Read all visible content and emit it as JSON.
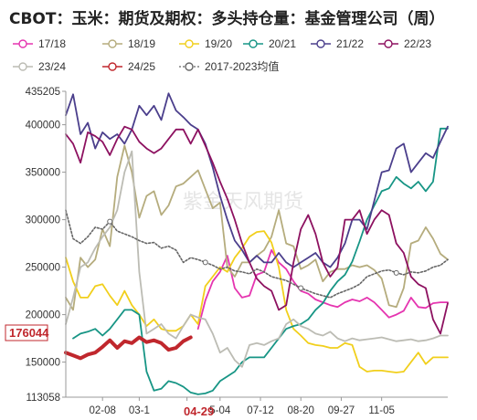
{
  "chart_data": {
    "type": "line",
    "title": "CBOT：玉米：期货及期权：多头持仓量：基金管理公司（周）",
    "watermark": "紫金天风期货",
    "xlabel": "",
    "ylabel": "",
    "ylim": [
      113058,
      435205
    ],
    "yticks": [
      113058,
      150000,
      200000,
      250000,
      300000,
      350000,
      400000,
      435205
    ],
    "yticklabels": [
      "113058",
      "150000",
      "200000",
      "250000",
      "300000",
      "350000",
      "400000",
      "435205"
    ],
    "xlim": [
      0,
      52
    ],
    "xticks": [
      {
        "week": 5,
        "label": "02-08"
      },
      {
        "week": 10,
        "label": "03-1"
      },
      {
        "week": 16.5,
        "label": "04-29"
      },
      {
        "week": 21,
        "label": "5-04"
      },
      {
        "week": 26.5,
        "label": "07-12"
      },
      {
        "week": 32,
        "label": "08-20"
      },
      {
        "week": 37.5,
        "label": "09-27"
      },
      {
        "week": 43,
        "label": "11-05"
      }
    ],
    "current_value_label": "176044",
    "current_value": 176044,
    "last_label": "04-29",
    "series": [
      {
        "name": "17/18",
        "color": "#e535b0",
        "marker": "none",
        "values": [
          null,
          null,
          null,
          null,
          null,
          null,
          null,
          null,
          null,
          null,
          null,
          null,
          null,
          null,
          null,
          null,
          null,
          null,
          185000,
          215000,
          235000,
          245000,
          262000,
          228000,
          218000,
          220000,
          242000,
          245000,
          268000,
          255000,
          248000,
          235000,
          225000,
          222000,
          216000,
          213000,
          210000,
          208000,
          213000,
          216000,
          214000,
          218000,
          213000,
          205000,
          197000,
          200000,
          204000,
          218000,
          208000,
          207000,
          212000,
          213000,
          213000
        ]
      },
      {
        "name": "18/19",
        "color": "#b5ac7d",
        "marker": "none",
        "values": [
          218000,
          205000,
          260000,
          250000,
          258000,
          290000,
          272000,
          345000,
          378000,
          350000,
          302000,
          325000,
          330000,
          305000,
          315000,
          335000,
          338000,
          345000,
          352000,
          332000,
          312000,
          318000,
          250000,
          240000,
          255000,
          255000,
          262000,
          268000,
          282000,
          310000,
          275000,
          272000,
          248000,
          252000,
          258000,
          235000,
          245000,
          248000,
          248000,
          252000,
          250000,
          252000,
          247000,
          238000,
          210000,
          208000,
          228000,
          275000,
          278000,
          292000,
          280000,
          264000,
          258000
        ]
      },
      {
        "name": "19/20",
        "color": "#f1cf1c",
        "marker": "none",
        "values": [
          260000,
          235000,
          218000,
          218000,
          230000,
          232000,
          220000,
          210000,
          225000,
          210000,
          200000,
          188000,
          195000,
          185000,
          183000,
          183000,
          188000,
          200000,
          190000,
          230000,
          240000,
          250000,
          245000,
          260000,
          270000,
          282000,
          287000,
          288000,
          276000,
          250000,
          205000,
          185000,
          178000,
          170000,
          168000,
          167000,
          165000,
          165000,
          170000,
          168000,
          145000,
          140000,
          141000,
          141000,
          140000,
          139000,
          140000,
          150000,
          160000,
          148000,
          155000,
          155000,
          155000
        ]
      },
      {
        "name": "20/21",
        "color": "#179585",
        "marker": "none",
        "values": [
          null,
          175000,
          180000,
          182000,
          185000,
          178000,
          185000,
          195000,
          205000,
          205000,
          200000,
          140000,
          120000,
          122000,
          130000,
          128000,
          124000,
          118000,
          116000,
          117000,
          120000,
          130000,
          135000,
          140000,
          150000,
          155000,
          155000,
          155000,
          165000,
          175000,
          185000,
          188000,
          190000,
          195000,
          205000,
          212000,
          225000,
          235000,
          242000,
          256000,
          277000,
          300000,
          315000,
          330000,
          333000,
          345000,
          338000,
          333000,
          340000,
          330000,
          340000,
          396000,
          396000
        ]
      },
      {
        "name": "21/22",
        "color": "#4b3f8c",
        "marker": "none",
        "values": [
          410000,
          432000,
          390000,
          402000,
          375000,
          392000,
          385000,
          390000,
          380000,
          395000,
          420000,
          410000,
          420000,
          405000,
          433000,
          415000,
          408000,
          400000,
          395000,
          380000,
          355000,
          325000,
          300000,
          278000,
          268000,
          255000,
          262000,
          255000,
          255000,
          265000,
          255000,
          250000,
          255000,
          260000,
          265000,
          255000,
          250000,
          260000,
          275000,
          300000,
          300000,
          290000,
          320000,
          350000,
          352000,
          375000,
          380000,
          350000,
          360000,
          370000,
          365000,
          382000,
          398000
        ]
      },
      {
        "name": "22/23",
        "color": "#8d1160",
        "marker": "none",
        "values": [
          390000,
          380000,
          360000,
          392000,
          388000,
          382000,
          368000,
          385000,
          398000,
          395000,
          382000,
          375000,
          370000,
          375000,
          385000,
          395000,
          395000,
          380000,
          395000,
          378000,
          360000,
          340000,
          322000,
          300000,
          275000,
          255000,
          238000,
          230000,
          225000,
          205000,
          210000,
          255000,
          290000,
          305000,
          285000,
          255000,
          240000,
          250000,
          300000,
          300000,
          310000,
          285000,
          300000,
          310000,
          305000,
          275000,
          265000,
          240000,
          232000,
          228000,
          195000,
          180000,
          212000
        ]
      },
      {
        "name": "23/24",
        "color": "#bcbcb4",
        "marker": "none",
        "values": [
          190000,
          218000,
          250000,
          255000,
          270000,
          282000,
          292000,
          310000,
          350000,
          372000,
          245000,
          180000,
          185000,
          190000,
          180000,
          175000,
          188000,
          200000,
          197000,
          195000,
          180000,
          160000,
          165000,
          152000,
          145000,
          168000,
          170000,
          168000,
          172000,
          175000,
          190000,
          195000,
          188000,
          185000,
          180000,
          178000,
          182000,
          175000,
          172000,
          175000,
          173000,
          174000,
          175000,
          176000,
          174000,
          172000,
          173000,
          174000,
          172000,
          173000,
          175000,
          178000,
          178000
        ]
      },
      {
        "name": "24/25",
        "color": "#c0272d",
        "marker": "none",
        "values": [
          160000,
          157000,
          154000,
          158000,
          160000,
          166000,
          173000,
          165000,
          172000,
          170000,
          176000,
          171000,
          173000,
          170000,
          163000,
          165000,
          172000,
          176044,
          null,
          null,
          null,
          null,
          null,
          null,
          null,
          null,
          null,
          null,
          null,
          null,
          null,
          null,
          null,
          null,
          null,
          null,
          null,
          null,
          null,
          null,
          null,
          null,
          null,
          null,
          null,
          null,
          null,
          null,
          null,
          null,
          null,
          null,
          null
        ]
      },
      {
        "name": "2017-2023均值",
        "color": "#666666",
        "marker": "circle",
        "values": [
          310000,
          280000,
          275000,
          282000,
          292000,
          290000,
          298000,
          288000,
          285000,
          282000,
          278000,
          275000,
          276000,
          270000,
          272000,
          268000,
          255000,
          260000,
          258000,
          255000,
          252000,
          248000,
          250000,
          246000,
          245000,
          243000,
          248000,
          245000,
          240000,
          238000,
          236000,
          232000,
          228000,
          225000,
          222000,
          220000,
          218000,
          222000,
          225000,
          228000,
          232000,
          240000,
          243000,
          246000,
          247000,
          244000,
          242000,
          245000,
          244000,
          246000,
          250000,
          252000,
          258000
        ]
      }
    ]
  }
}
